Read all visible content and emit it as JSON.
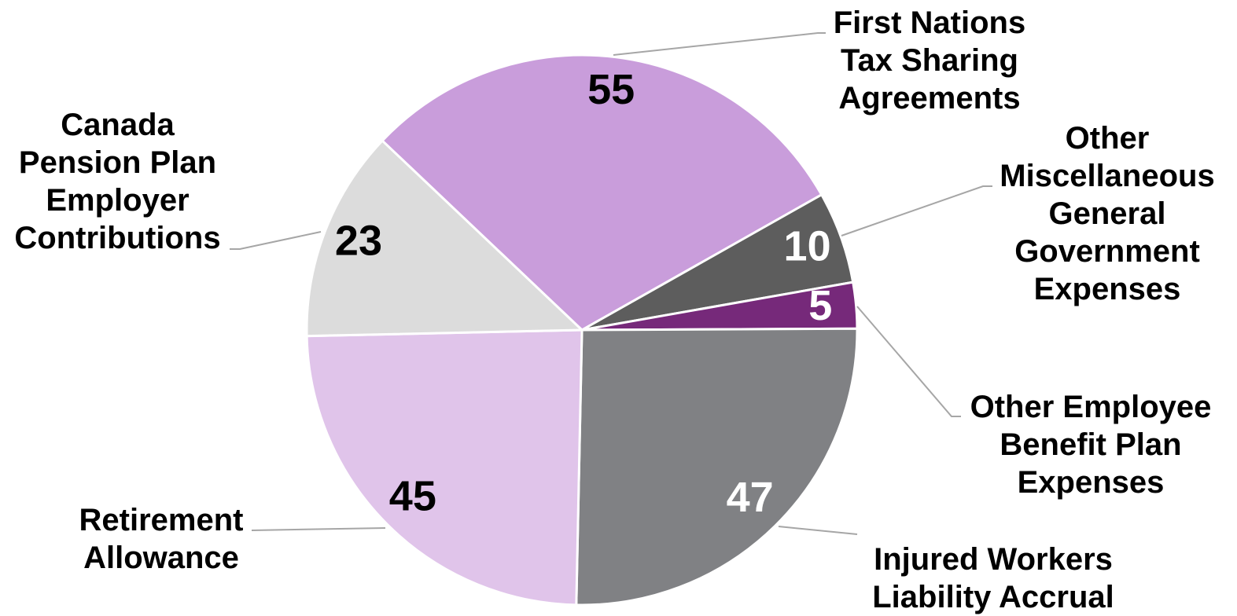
{
  "chart_data": {
    "type": "pie",
    "categories": [
      "First Nations Tax Sharing Agreements",
      "Other Miscellaneous General Government Expenses",
      "Other Employee Benefit Plan Expenses",
      "Injured Workers Liability Accrual",
      "Retirement Allowance",
      "Canada Pension Plan Employer Contributions"
    ],
    "values": [
      55,
      10,
      5,
      47,
      45,
      23
    ],
    "colors": [
      "#c99ddb",
      "#5d5d5d",
      "#76297a",
      "#808184",
      "#e0c4ea",
      "#dcdcdc"
    ],
    "value_label_colors": [
      "#000000",
      "#ffffff",
      "#ffffff",
      "#ffffff",
      "#000000",
      "#000000"
    ]
  }
}
